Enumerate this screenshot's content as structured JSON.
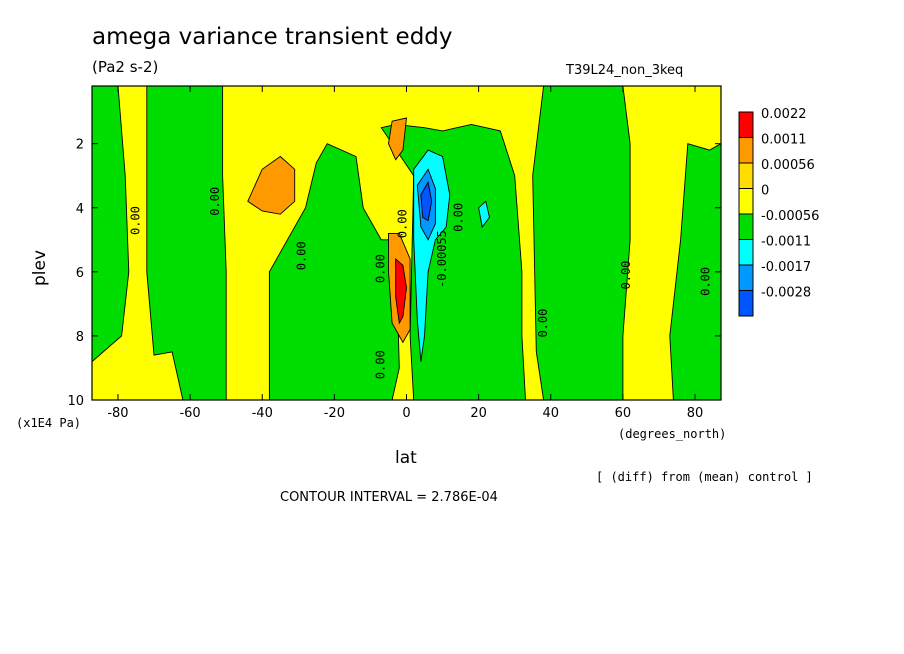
{
  "title": "amega variance transient eddy",
  "units": "(Pa2 s-2)",
  "run_id": "T39L24_non_3keq",
  "note": "[ (diff) from (mean) control ]",
  "contour_interval": "CONTOUR INTERVAL = 2.786E-04",
  "colors": {
    "c1": "#ff0000",
    "c2": "#ff9900",
    "c3": "#ffdd00",
    "c4": "#ffff00",
    "c5": "#00dd00",
    "c6": "#00ffff",
    "c7": "#0099ff",
    "c8": "#0055ff"
  },
  "chart_data": {
    "type": "heatmap",
    "xlabel": "lat",
    "xunits": "(degrees_north)",
    "ylabel": "plev",
    "yunits": "(x1E4 Pa)",
    "xlim": [
      -87.2,
      87.2
    ],
    "ylim": [
      10,
      0.2
    ],
    "xticks": [
      -80,
      -60,
      -40,
      -20,
      0,
      20,
      40,
      60,
      80
    ],
    "xtick_labels": [
      "-80",
      "-60",
      "-40",
      "-20",
      "0",
      "20",
      "40",
      "60",
      "80"
    ],
    "yticks": [
      2,
      4,
      6,
      8,
      10
    ],
    "ytick_labels": [
      "2",
      "4",
      "6",
      "8",
      "10"
    ],
    "legend": {
      "placement": "right",
      "levels": [
        "0.0022",
        "0.0011",
        "0.00056",
        "0",
        "-0.00056",
        "-0.0011",
        "-0.0017",
        "-0.0028"
      ],
      "colors": [
        "#ff0000",
        "#ff9900",
        "#ffdd00",
        "#ffff00",
        "#00dd00",
        "#00ffff",
        "#0099ff",
        "#0055ff"
      ]
    },
    "background_level": "0 to 0.00056 (yellow)",
    "regions": [
      {
        "level": "-0.00056 to 0",
        "color": "#00dd00",
        "polygon": [
          [
            -87.2,
            0.2
          ],
          [
            -80,
            0.2
          ],
          [
            -78,
            3
          ],
          [
            -77,
            6
          ],
          [
            -79,
            8
          ],
          [
            -87.2,
            8.8
          ]
        ]
      },
      {
        "level": "-0.00056 to 0",
        "color": "#00dd00",
        "polygon": [
          [
            -72,
            0.2
          ],
          [
            -51,
            0.2
          ],
          [
            -51,
            3
          ],
          [
            -50,
            6
          ],
          [
            -50,
            10
          ],
          [
            -62,
            10
          ],
          [
            -65,
            8.5
          ],
          [
            -70,
            8.6
          ],
          [
            -72,
            6
          ]
        ]
      },
      {
        "level": "-0.00056 to 0",
        "color": "#00dd00",
        "polygon": [
          [
            -38,
            6
          ],
          [
            -28,
            4
          ],
          [
            -25,
            2.6
          ],
          [
            -22,
            2
          ],
          [
            -14,
            2.4
          ],
          [
            -12,
            4
          ],
          [
            -7,
            5
          ],
          [
            -3,
            5
          ],
          [
            -2,
            9
          ],
          [
            -4,
            10
          ],
          [
            -38,
            10
          ]
        ]
      },
      {
        "level": "-0.00056 to 0",
        "color": "#00dd00",
        "polygon": [
          [
            -7,
            1.5
          ],
          [
            -3,
            1.4
          ],
          [
            5,
            1.5
          ],
          [
            10,
            1.6
          ],
          [
            18,
            1.4
          ],
          [
            26,
            1.6
          ],
          [
            30,
            3
          ],
          [
            32,
            6
          ],
          [
            32,
            8
          ],
          [
            33,
            10
          ],
          [
            2,
            10
          ],
          [
            1,
            8
          ],
          [
            2,
            3
          ]
        ]
      },
      {
        "level": "-0.00056 to 0",
        "color": "#00dd00",
        "polygon": [
          [
            38,
            0.2
          ],
          [
            60,
            0.2
          ],
          [
            62,
            2
          ],
          [
            62,
            5
          ],
          [
            60,
            8
          ],
          [
            60,
            10
          ],
          [
            38,
            10
          ],
          [
            36,
            8.5
          ],
          [
            35,
            3
          ]
        ]
      },
      {
        "level": "-0.00056 to 0",
        "color": "#00dd00",
        "polygon": [
          [
            78,
            2
          ],
          [
            84,
            2.2
          ],
          [
            87.2,
            2
          ],
          [
            87.2,
            10
          ],
          [
            74,
            10
          ],
          [
            73,
            8
          ],
          [
            76,
            5
          ]
        ]
      },
      {
        "level": "0.00056 to 0.0011",
        "color": "#ff9900",
        "polygon": [
          [
            -44,
            3.8
          ],
          [
            -40,
            2.8
          ],
          [
            -35,
            2.4
          ],
          [
            -31,
            2.8
          ],
          [
            -31,
            3.8
          ],
          [
            -35,
            4.2
          ],
          [
            -40,
            4.1
          ]
        ]
      },
      {
        "level": "0.00056 to 0.0011",
        "color": "#ff9900",
        "polygon": [
          [
            -4,
            1.3
          ],
          [
            0,
            1.2
          ],
          [
            -1,
            2.2
          ],
          [
            -3,
            2.5
          ],
          [
            -5,
            2
          ]
        ]
      },
      {
        "level": "0.00056 to 0.0011",
        "color": "#ff9900",
        "polygon": [
          [
            -5,
            4.8
          ],
          [
            -2,
            4.8
          ],
          [
            1,
            5.6
          ],
          [
            1,
            7.8
          ],
          [
            -1,
            8.2
          ],
          [
            -4,
            7.6
          ],
          [
            -5,
            6
          ]
        ]
      },
      {
        "level": "0.0011 to 0.0022",
        "color": "#ff0000",
        "polygon": [
          [
            -3,
            5.6
          ],
          [
            -1,
            5.8
          ],
          [
            0,
            6.5
          ],
          [
            -1,
            7.4
          ],
          [
            -2,
            7.6
          ],
          [
            -3,
            6.8
          ]
        ]
      },
      {
        "level": "-0.0011 to -0.00056",
        "color": "#00ffff",
        "polygon": [
          [
            2,
            2.8
          ],
          [
            6,
            2.2
          ],
          [
            10,
            2.4
          ],
          [
            12,
            3.6
          ],
          [
            11,
            4.6
          ],
          [
            8,
            5
          ],
          [
            6,
            6
          ],
          [
            5,
            8
          ],
          [
            4,
            8.8
          ],
          [
            3,
            7.5
          ],
          [
            2,
            5
          ]
        ]
      },
      {
        "level": "-0.0011 to -0.00056",
        "color": "#00ffff",
        "polygon": [
          [
            20,
            4
          ],
          [
            22,
            3.8
          ],
          [
            23,
            4.3
          ],
          [
            21,
            4.6
          ]
        ]
      },
      {
        "level": "-0.0017 to -0.0011",
        "color": "#0099ff",
        "polygon": [
          [
            3,
            3.3
          ],
          [
            6,
            2.8
          ],
          [
            8,
            3.4
          ],
          [
            8,
            4.5
          ],
          [
            6,
            5
          ],
          [
            4,
            4.6
          ]
        ]
      },
      {
        "level": "-0.0028 to -0.0017",
        "color": "#0055ff",
        "polygon": [
          [
            4,
            3.6
          ],
          [
            6,
            3.2
          ],
          [
            7,
            3.8
          ],
          [
            6,
            4.4
          ],
          [
            4.5,
            4.3
          ]
        ]
      }
    ],
    "contour_labels": [
      {
        "text": "0.00",
        "lat": -75,
        "plev": 4.4,
        "rotate": -90
      },
      {
        "text": "0.00",
        "lat": -53,
        "plev": 3.8,
        "rotate": -90
      },
      {
        "text": "0.00",
        "lat": -29,
        "plev": 5.5,
        "rotate": -90
      },
      {
        "text": "0.00",
        "lat": -7,
        "plev": 5.9,
        "rotate": -90
      },
      {
        "text": "0.00",
        "lat": -7,
        "plev": 8.9,
        "rotate": -90
      },
      {
        "text": "0.00",
        "lat": -1,
        "plev": 4.5,
        "rotate": -90
      },
      {
        "text": "-0.00055",
        "lat": 10,
        "plev": 5.6,
        "rotate": -90
      },
      {
        "text": "0.00",
        "lat": 14.5,
        "plev": 4.3,
        "rotate": -90
      },
      {
        "text": "0.00",
        "lat": 38,
        "plev": 7.6,
        "rotate": -90
      },
      {
        "text": "0.00",
        "lat": 61,
        "plev": 6.1,
        "rotate": -90
      },
      {
        "text": "0.00",
        "lat": 83,
        "plev": 6.3,
        "rotate": -90
      }
    ]
  }
}
